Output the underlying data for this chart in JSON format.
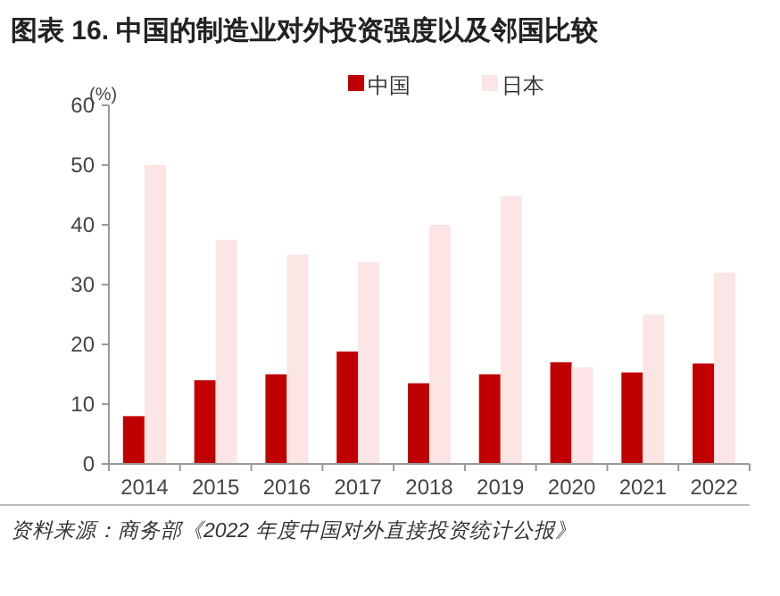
{
  "chart_data": {
    "type": "bar",
    "title": "图表 16. 中国的制造业对外投资强度以及邻国比较",
    "ylabel": "(%)",
    "categories": [
      "2014",
      "2015",
      "2016",
      "2017",
      "2018",
      "2019",
      "2020",
      "2021",
      "2022"
    ],
    "series": [
      {
        "name": "中国",
        "color": "#c00000",
        "values": [
          8,
          14,
          15,
          18.8,
          13.5,
          15,
          17,
          15.3,
          16.8
        ]
      },
      {
        "name": "日本",
        "color": "#fbe5e5",
        "values": [
          50,
          37.5,
          35,
          33.8,
          40,
          44.8,
          16.2,
          25,
          32
        ]
      }
    ],
    "ylim": [
      0,
      60
    ],
    "yticks": [
      0,
      10,
      20,
      30,
      40,
      50,
      60
    ],
    "legend": "top",
    "grid": false,
    "annotations": [
      "资料来源：商务部《2022 年度中国对外直接投资统计公报》"
    ]
  }
}
